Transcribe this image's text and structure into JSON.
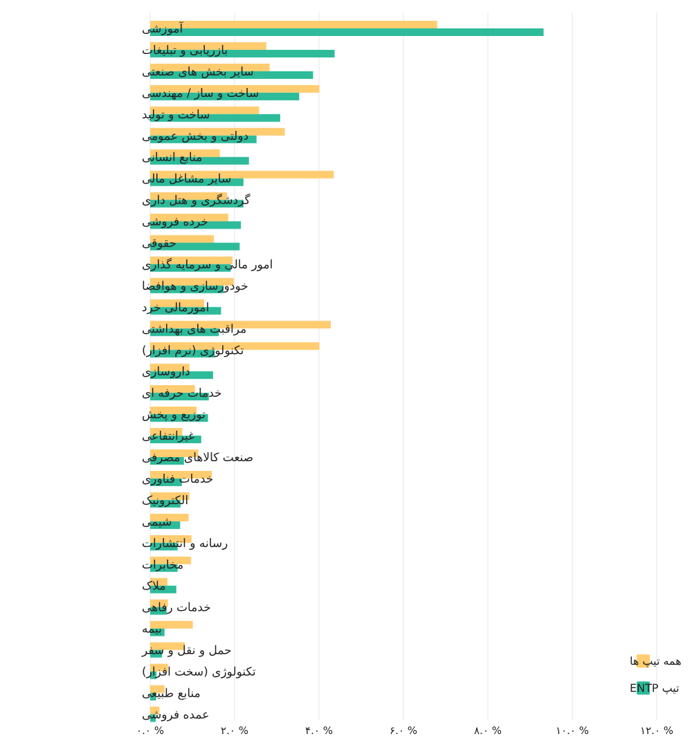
{
  "chart_data": {
    "type": "bar",
    "orientation": "horizontal",
    "title": "",
    "xlabel": "",
    "ylabel": "",
    "xlim": [
      0,
      12
    ],
    "grid": true,
    "legend_position": "bottom-right",
    "ticks": [
      {
        "value": 0,
        "label": "۰.۰ %"
      },
      {
        "value": 2,
        "label": "۲.۰ %"
      },
      {
        "value": 4,
        "label": "۴.۰ %"
      },
      {
        "value": 6,
        "label": "۶.۰ %"
      },
      {
        "value": 8,
        "label": "۸.۰ %"
      },
      {
        "value": 10,
        "label": "۱۰.۰ %"
      },
      {
        "value": 12,
        "label": "۱۲.۰ %"
      }
    ],
    "categories": [
      "آموزشی",
      "بازریابی و تبلیغات",
      "سایر بخش های صنعتی",
      "ساخت و ساز / مهندسی",
      "ساخت و تولید",
      "دولتی و بخش عمومی",
      "منابع انسانی",
      "سایر مشاغل مالی",
      "گردشگری و هتل داری",
      "خرده فروشی",
      "حقوقی",
      "امور مالی و سرمایه گذاری",
      "خودورسازی و هوافضا",
      "امورمالی خرد",
      "مراقبت های بهداشتی",
      "تکنولوژی (نرم افزار)",
      "داروسازی",
      "خدمات حرفه ای",
      "توزیع و پخش",
      "غیرانتفاعی",
      "صنعت کالاهای مصرفی",
      "خدمات فناوری",
      "الکترونیک",
      "شیمی",
      "رسانه و انتشارات",
      "مخابرات",
      "ملاک",
      "خدمات رفاهی",
      "بیمه",
      "حمل و نقل و سفر",
      "تکنولوژی (سخت افزار)",
      "منابع طبیعی",
      "عمده فروشی"
    ],
    "series": [
      {
        "name": "همه تیپ ها",
        "color": "#FFCC70",
        "values": [
          6.8,
          2.75,
          2.83,
          4.01,
          2.58,
          3.19,
          1.65,
          4.35,
          1.82,
          1.85,
          1.51,
          1.95,
          1.98,
          1.28,
          4.28,
          4.01,
          0.93,
          1.06,
          1.1,
          0.76,
          1.14,
          1.46,
          0.93,
          0.91,
          0.98,
          0.97,
          0.41,
          0.42,
          1.01,
          0.82,
          0.42,
          0.34,
          0.22
        ]
      },
      {
        "name": "تیپ ENTP",
        "color": "#2DBB9A",
        "values": [
          9.32,
          4.37,
          3.86,
          3.53,
          3.08,
          2.52,
          2.34,
          2.21,
          2.21,
          2.15,
          2.12,
          1.91,
          1.74,
          1.68,
          1.63,
          1.53,
          1.49,
          1.39,
          1.37,
          1.21,
          0.8,
          0.75,
          0.72,
          0.71,
          0.65,
          0.65,
          0.62,
          0.39,
          0.34,
          0.28,
          0.15,
          0.14,
          0.13
        ]
      }
    ]
  }
}
